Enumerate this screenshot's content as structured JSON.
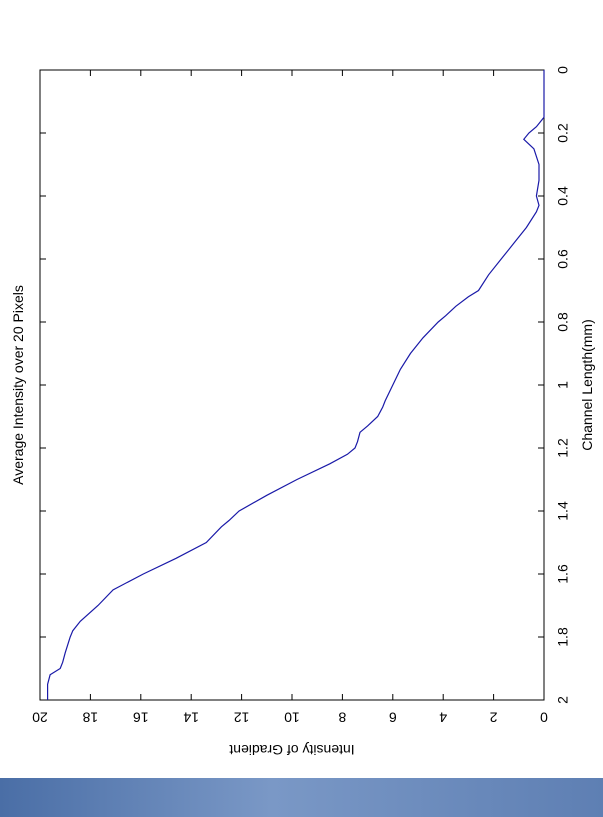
{
  "chart_data": {
    "type": "line",
    "title": "Average Intensity over 20 Pixels",
    "xlabel": "Channel Length(mm)",
    "ylabel": "Intensity of Gradient",
    "xlim": [
      0,
      2
    ],
    "ylim": [
      0,
      20
    ],
    "xticks": [
      "0",
      "0.2",
      "0.4",
      "0.6",
      "0.8",
      "1",
      "1.2",
      "1.4",
      "1.6",
      "1.8",
      "2"
    ],
    "yticks": [
      "0",
      "2",
      "4",
      "6",
      "8",
      "10",
      "12",
      "14",
      "16",
      "18",
      "20"
    ],
    "grid": false,
    "rotation": "rotated 90 degrees clockwise",
    "line_color": "#1a1aa8",
    "series": [
      {
        "x": [
          0,
          0.1,
          0.15,
          0.18,
          0.2,
          0.22,
          0.25,
          0.3,
          0.35,
          0.4,
          0.43,
          0.45,
          0.5,
          0.55,
          0.6,
          0.65,
          0.7,
          0.72,
          0.75,
          0.78,
          0.8,
          0.85,
          0.9,
          0.95,
          1.0,
          1.05,
          1.07,
          1.1,
          1.13,
          1.15,
          1.18,
          1.2,
          1.22,
          1.25,
          1.3,
          1.35,
          1.4,
          1.43,
          1.45,
          1.5,
          1.55,
          1.6,
          1.65,
          1.7,
          1.75,
          1.78,
          1.8,
          1.85,
          1.88,
          1.9,
          1.92,
          1.95,
          2.0
        ],
        "y": [
          0,
          0,
          0,
          0.3,
          0.6,
          0.8,
          0.4,
          0.2,
          0.2,
          0.3,
          0.2,
          0.3,
          0.7,
          1.2,
          1.7,
          2.2,
          2.6,
          3.0,
          3.5,
          3.9,
          4.2,
          4.8,
          5.3,
          5.7,
          6.0,
          6.3,
          6.4,
          6.6,
          7.0,
          7.3,
          7.4,
          7.5,
          7.8,
          8.5,
          9.8,
          11.0,
          12.1,
          12.5,
          12.8,
          13.4,
          14.6,
          15.9,
          17.1,
          17.7,
          18.4,
          18.7,
          18.8,
          19.0,
          19.1,
          19.2,
          19.6,
          19.7,
          19.7
        ]
      }
    ]
  }
}
